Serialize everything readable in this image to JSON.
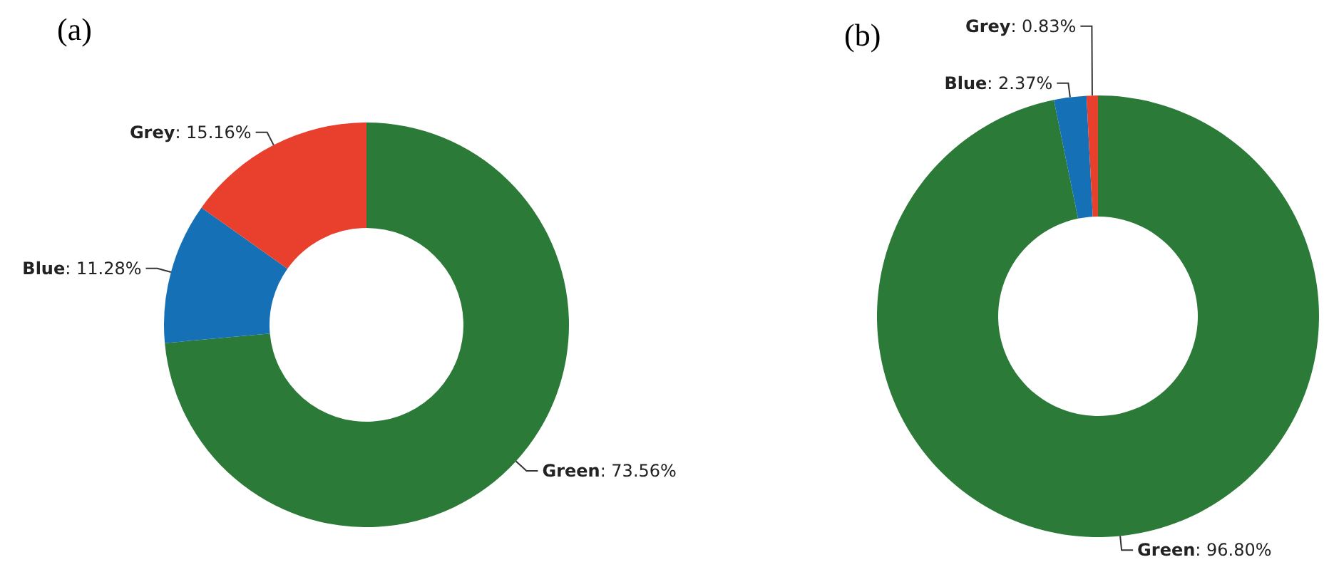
{
  "chart_data": [
    {
      "type": "donut",
      "title": "(a)",
      "categories": [
        "Green",
        "Blue",
        "Grey"
      ],
      "values": [
        73.56,
        11.28,
        15.16
      ],
      "value_labels": [
        ": 73.56%",
        ": 11.28%",
        ": 15.16%"
      ],
      "colors": [
        "#2b7a38",
        "#1670b5",
        "#e8402c"
      ]
    },
    {
      "type": "donut",
      "title": "(b)",
      "categories": [
        "Green",
        "Blue",
        "Grey"
      ],
      "values": [
        96.8,
        2.37,
        0.83
      ],
      "value_labels": [
        ": 96.80%",
        ": 2.37%",
        ": 0.83%"
      ],
      "colors": [
        "#2b7a38",
        "#1670b5",
        "#e8402c"
      ]
    }
  ]
}
